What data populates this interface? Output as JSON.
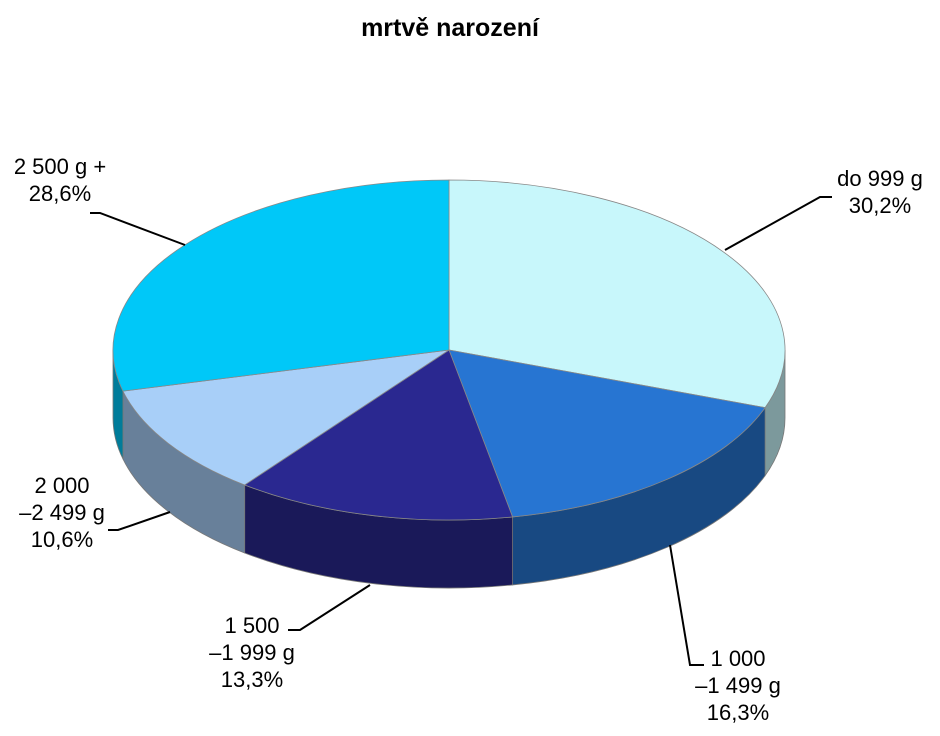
{
  "chart_data": {
    "type": "pie3d",
    "title": "mrtvě narození",
    "categories": [
      "do 999 g",
      "1 000\n–1 499 g",
      "1 500\n–1 999 g",
      "2 000\n–2 499 g",
      "2 500 g +"
    ],
    "values": [
      30.2,
      16.3,
      13.3,
      10.6,
      28.6
    ],
    "value_labels": [
      "30,2%",
      "16,3%",
      "13,3%",
      "10,6%",
      "28,6%"
    ],
    "colors": [
      "#c8f7fb",
      "#2775d2",
      "#2a2890",
      "#a8cff8",
      "#00c8f8"
    ]
  }
}
